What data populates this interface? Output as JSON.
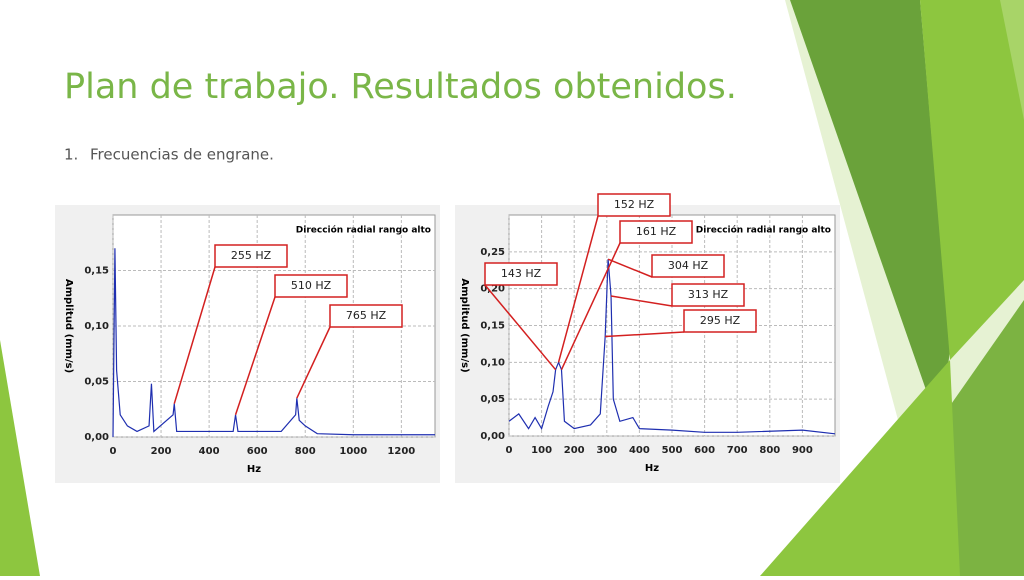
{
  "slide": {
    "title": "Plan de trabajo. Resultados obtenidos.",
    "list_item": {
      "number": "1.",
      "text": "Frecuencias de engrane."
    }
  },
  "chart_data": [
    {
      "type": "line",
      "title": "Dirección radial rango alto",
      "x_label": "Hz",
      "y_label": "Amplitud (mm/s)",
      "xlim": [
        0,
        1340
      ],
      "ylim": [
        0,
        0.2
      ],
      "xticks": [
        0,
        200,
        400,
        600,
        800,
        1000,
        1200
      ],
      "yticks": [
        {
          "value": 0,
          "label": "0,00"
        },
        {
          "value": 0.05,
          "label": "0,05"
        },
        {
          "value": 0.1,
          "label": "0,10"
        },
        {
          "value": 0.15,
          "label": "0,15"
        }
      ],
      "grid": true,
      "x": [
        0,
        8,
        15,
        30,
        60,
        100,
        150,
        160,
        170,
        250,
        255,
        265,
        400,
        500,
        510,
        520,
        700,
        760,
        765,
        775,
        800,
        850,
        1000,
        1200,
        1340
      ],
      "series": [
        {
          "color": "#1f2fb0",
          "values": [
            0.0,
            0.17,
            0.06,
            0.02,
            0.01,
            0.005,
            0.01,
            0.048,
            0.005,
            0.02,
            0.03,
            0.005,
            0.005,
            0.005,
            0.02,
            0.005,
            0.005,
            0.02,
            0.035,
            0.015,
            0.01,
            0.003,
            0.002,
            0.002,
            0.002
          ]
        }
      ],
      "annotations": [
        {
          "text": "255 HZ",
          "x": 255,
          "y": 0.03
        },
        {
          "text": "510 HZ",
          "x": 510,
          "y": 0.02
        },
        {
          "text": "765 HZ",
          "x": 765,
          "y": 0.035
        }
      ]
    },
    {
      "type": "line",
      "title": "Dirección radial rango alto",
      "x_label": "Hz",
      "y_label": "Amplitud (mm/s)",
      "xlim": [
        0,
        1000
      ],
      "ylim": [
        0,
        0.3
      ],
      "xticks": [
        0,
        100,
        200,
        300,
        400,
        500,
        600,
        700,
        800,
        900
      ],
      "yticks": [
        {
          "value": 0,
          "label": "0,00"
        },
        {
          "value": 0.05,
          "label": "0,05"
        },
        {
          "value": 0.1,
          "label": "0,10"
        },
        {
          "value": 0.15,
          "label": "0,15"
        },
        {
          "value": 0.2,
          "label": "0,20"
        },
        {
          "value": 0.25,
          "label": "0,25"
        }
      ],
      "grid": true,
      "x": [
        0,
        30,
        60,
        80,
        100,
        120,
        135,
        143,
        152,
        161,
        170,
        200,
        250,
        280,
        295,
        304,
        313,
        320,
        340,
        380,
        400,
        500,
        600,
        700,
        900,
        1000
      ],
      "series": [
        {
          "color": "#1f2fb0",
          "values": [
            0.02,
            0.03,
            0.01,
            0.025,
            0.01,
            0.04,
            0.06,
            0.09,
            0.1,
            0.09,
            0.02,
            0.01,
            0.015,
            0.03,
            0.135,
            0.24,
            0.19,
            0.05,
            0.02,
            0.025,
            0.01,
            0.008,
            0.005,
            0.005,
            0.008,
            0.003
          ]
        }
      ],
      "annotations": [
        {
          "text": "152 HZ",
          "x": 152,
          "y": 0.1
        },
        {
          "text": "161 HZ",
          "x": 161,
          "y": 0.09
        },
        {
          "text": "143 HZ",
          "x": 143,
          "y": 0.09
        },
        {
          "text": "304 HZ",
          "x": 304,
          "y": 0.24
        },
        {
          "text": "313 HZ",
          "x": 313,
          "y": 0.19
        },
        {
          "text": "295 HZ",
          "x": 295,
          "y": 0.135
        }
      ]
    }
  ]
}
